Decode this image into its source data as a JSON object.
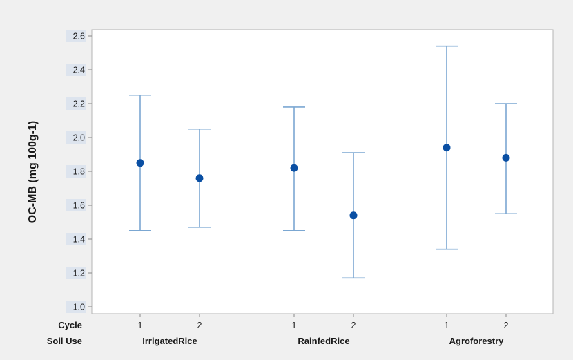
{
  "chart_data": {
    "type": "interval",
    "ylabel": "OC-MB (mg 100g-1)",
    "ylim": [
      1.0,
      2.6
    ],
    "yticks": [
      "1.0",
      "1.2",
      "1.4",
      "1.6",
      "1.8",
      "2.0",
      "2.2",
      "2.4",
      "2.6"
    ],
    "row_labels": [
      "Cycle",
      "Soil Use"
    ],
    "groups": [
      "IrrigatedRice",
      "RainfedRice",
      "Agroforestry"
    ],
    "points": [
      {
        "group": "IrrigatedRice",
        "cycle": "1",
        "mean": 1.85,
        "lower": 1.45,
        "upper": 2.25
      },
      {
        "group": "IrrigatedRice",
        "cycle": "2",
        "mean": 1.76,
        "lower": 1.47,
        "upper": 2.05
      },
      {
        "group": "RainfedRice",
        "cycle": "1",
        "mean": 1.82,
        "lower": 1.45,
        "upper": 2.18
      },
      {
        "group": "RainfedRice",
        "cycle": "2",
        "mean": 1.54,
        "lower": 1.17,
        "upper": 1.91
      },
      {
        "group": "Agroforestry",
        "cycle": "1",
        "mean": 1.94,
        "lower": 1.34,
        "upper": 2.54
      },
      {
        "group": "Agroforestry",
        "cycle": "2",
        "mean": 1.88,
        "lower": 1.55,
        "upper": 2.2
      }
    ],
    "grid": false,
    "legend": "none",
    "colors": {
      "outer_background": "#f0f0f0",
      "plot_background": "#ffffff",
      "tick_label_box": "#dde4ee",
      "interval_line": "#7ba7d2",
      "marker": "#0a4fa3"
    }
  }
}
